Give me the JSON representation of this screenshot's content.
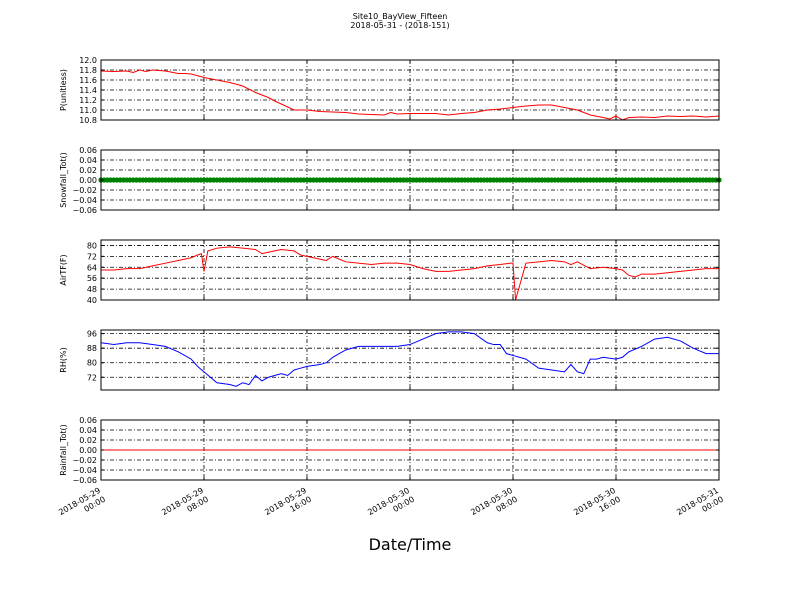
{
  "figure": {
    "title": "Site10_BayView_Fifteen",
    "subtitle": "2018-05-31 - (2018-151)",
    "xlabel": "Date/Time"
  },
  "chart_data": {
    "type": "line",
    "x_axis": {
      "range": [
        "2018-05-29 00:00",
        "2018-05-31 00:00"
      ],
      "tick_labels": [
        [
          "2018-05-29",
          "00:00"
        ],
        [
          "2018-05-29",
          "08:00"
        ],
        [
          "2018-05-29",
          "16:00"
        ],
        [
          "2018-05-30",
          "00:00"
        ],
        [
          "2018-05-30",
          "08:00"
        ],
        [
          "2018-05-30",
          "16:00"
        ],
        [
          "2018-05-31",
          "00:00"
        ]
      ],
      "tick_hours": [
        0,
        8,
        16,
        24,
        32,
        40,
        48
      ]
    },
    "grid": true,
    "panels": [
      {
        "ylabel": "P(unitless)",
        "ylim": [
          10.8,
          12.0
        ],
        "yticks": [
          10.8,
          11.0,
          11.2,
          11.4,
          11.6,
          11.8,
          12.0
        ],
        "ytick_labels": [
          "10.8",
          "11.0",
          "11.2",
          "11.4",
          "11.6",
          "11.8",
          "12.0"
        ],
        "color": "#ff0000",
        "style": "line",
        "hours": [
          0,
          1,
          2,
          2.5,
          3,
          3.5,
          4,
          5,
          6,
          6.5,
          7,
          8,
          9,
          10,
          11,
          12,
          13,
          13.5,
          14,
          15,
          16,
          17,
          18,
          19,
          20,
          21,
          22,
          22.5,
          23,
          24,
          25,
          26,
          27,
          28,
          29,
          30,
          31,
          32,
          33,
          34,
          35,
          36,
          37,
          38,
          39,
          39.5,
          40,
          40.5,
          41,
          42,
          43,
          44,
          45,
          46,
          47,
          48
        ],
        "values": [
          11.78,
          11.77,
          11.78,
          11.75,
          11.8,
          11.77,
          11.8,
          11.78,
          11.73,
          11.73,
          11.72,
          11.65,
          11.6,
          11.55,
          11.48,
          11.35,
          11.25,
          11.18,
          11.12,
          11.0,
          11.0,
          10.97,
          10.96,
          10.95,
          10.92,
          10.91,
          10.9,
          10.95,
          10.92,
          10.93,
          10.93,
          10.93,
          10.9,
          10.93,
          10.95,
          11.0,
          11.02,
          11.05,
          11.08,
          11.1,
          11.1,
          11.05,
          11.0,
          10.9,
          10.85,
          10.82,
          10.88,
          10.8,
          10.85,
          10.86,
          10.85,
          10.88,
          10.87,
          10.88,
          10.86,
          10.88
        ]
      },
      {
        "ylabel": "Snowfall_Tot()",
        "ylim": [
          -0.06,
          0.06
        ],
        "yticks": [
          -0.06,
          -0.04,
          -0.02,
          0.0,
          0.02,
          0.04,
          0.06
        ],
        "ytick_labels": [
          "−0.06",
          "−0.04",
          "−0.02",
          "0.00",
          "0.02",
          "0.04",
          "0.06"
        ],
        "color": "#008000",
        "style": "markers",
        "hours": [
          0,
          48
        ],
        "values": [
          0,
          0
        ]
      },
      {
        "ylabel": "AirTF(F)",
        "ylim": [
          40,
          84
        ],
        "yticks": [
          40,
          48,
          56,
          64,
          72,
          80
        ],
        "ytick_labels": [
          "40",
          "48",
          "56",
          "64",
          "72",
          "80"
        ],
        "color": "#ff0000",
        "style": "line",
        "hours": [
          0,
          1,
          2,
          3,
          4,
          5,
          6,
          7,
          7.5,
          7.8,
          8.0,
          8.3,
          9,
          10,
          11,
          12,
          12.5,
          13,
          14,
          15,
          15.5,
          16,
          17,
          17.5,
          18,
          19,
          20,
          21,
          22,
          23,
          24,
          25,
          26,
          27,
          28,
          29,
          30,
          31,
          31.8,
          32.0,
          32.2,
          33,
          34,
          35,
          36,
          36.5,
          37,
          38,
          39,
          40,
          40.5,
          41,
          41.5,
          42,
          43,
          44,
          45,
          46,
          47,
          48
        ],
        "values": [
          62,
          62,
          63,
          63,
          65,
          67,
          69,
          71,
          73,
          74,
          61,
          76,
          78,
          79,
          78,
          77,
          74,
          75,
          77,
          76,
          73,
          72,
          70,
          69,
          72,
          68,
          67,
          66,
          67,
          67,
          66,
          63,
          61,
          61,
          62,
          63,
          65,
          66,
          67,
          67,
          40,
          67,
          68,
          69,
          68,
          66,
          68,
          63,
          64,
          63,
          62,
          58,
          57,
          59,
          59,
          60,
          61,
          62,
          63,
          63
        ]
      },
      {
        "ylabel": "RH(%)",
        "ylim": [
          65,
          98
        ],
        "yticks": [
          72,
          80,
          88,
          96
        ],
        "ytick_labels": [
          "72",
          "80",
          "88",
          "96"
        ],
        "color": "#0000ff",
        "style": "line",
        "hours": [
          0,
          1,
          2,
          3,
          4,
          5,
          6,
          7,
          7.5,
          8,
          9,
          10,
          10.5,
          11,
          11.5,
          12,
          12.5,
          13,
          14,
          14.5,
          15,
          15.5,
          16,
          17,
          17.5,
          18,
          19,
          20,
          21,
          22,
          23,
          24,
          25,
          26,
          27,
          28,
          29,
          30,
          30.5,
          31,
          31.5,
          32,
          33,
          34,
          35,
          36,
          36.5,
          37,
          37.5,
          38,
          38.5,
          39,
          40,
          40.5,
          41,
          42,
          43,
          44,
          45,
          46,
          47,
          48
        ],
        "values": [
          91,
          90,
          91,
          91,
          90,
          89,
          86,
          82,
          78,
          75,
          69,
          68,
          67,
          69,
          68,
          73,
          70,
          72,
          74,
          73,
          76,
          77,
          78,
          79,
          80,
          83,
          87,
          89,
          89,
          89,
          89,
          90,
          93,
          96,
          97,
          97,
          96,
          91,
          90,
          90,
          85,
          84,
          82,
          77,
          76,
          75,
          79,
          75,
          74,
          82,
          82,
          83,
          82,
          83,
          86,
          89,
          93,
          94,
          92,
          88,
          85,
          85
        ]
      },
      {
        "ylabel": "Rainfall_Tot()",
        "ylim": [
          -0.06,
          0.06
        ],
        "yticks": [
          -0.06,
          -0.04,
          -0.02,
          0.0,
          0.02,
          0.04,
          0.06
        ],
        "ytick_labels": [
          "−0.06",
          "−0.04",
          "−0.02",
          "0.00",
          "0.02",
          "0.04",
          "0.06"
        ],
        "color": "#ff0000",
        "style": "line",
        "hours": [
          0,
          48
        ],
        "values": [
          0,
          0
        ]
      }
    ]
  }
}
